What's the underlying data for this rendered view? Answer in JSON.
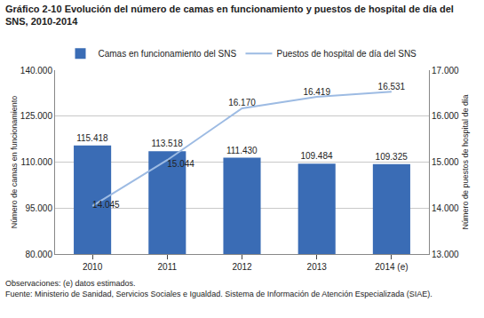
{
  "chart_data": {
    "type": "bar",
    "title": "Gráfico 2-10 Evolución del número de camas en funcionamiento y puestos de hospital de día del SNS, 2010-2014",
    "categories": [
      "2010",
      "2011",
      "2012",
      "2013",
      "2014 (e)"
    ],
    "series": [
      {
        "name": "Camas en funcionamiento del SNS",
        "type": "bar",
        "color": "#3a6cb5",
        "values": [
          115418,
          113518,
          111430,
          109484,
          109325
        ],
        "value_labels": [
          "115.418",
          "113.518",
          "111.430",
          "109.484",
          "109.325"
        ]
      },
      {
        "name": "Puestos de hospital de día del SNS",
        "type": "line",
        "axis": "y2",
        "color": "#9dbbe3",
        "values": [
          14045,
          15044,
          16170,
          16419,
          16531
        ],
        "value_labels": [
          "14.045",
          "15.044",
          "16.170",
          "16.419",
          "16.531"
        ]
      }
    ],
    "ylabel": "Número de camas en funcionamiento",
    "y2label": "Número de puestos de hospital de día",
    "ylim": [
      80000,
      140000
    ],
    "yticks": [
      {
        "value": 80000,
        "label": "80.000"
      },
      {
        "value": 95000,
        "label": "95.000"
      },
      {
        "value": 110000,
        "label": "110.000"
      },
      {
        "value": 125000,
        "label": "125.000"
      },
      {
        "value": 140000,
        "label": "140.000"
      }
    ],
    "y2lim": [
      13000,
      17000
    ],
    "y2ticks": [
      {
        "value": 13000,
        "label": "13.000"
      },
      {
        "value": 14000,
        "label": "14.000"
      },
      {
        "value": 15000,
        "label": "15.000"
      },
      {
        "value": 16000,
        "label": "16.000"
      },
      {
        "value": 17000,
        "label": "17.000"
      }
    ],
    "grid": true,
    "legend": "top",
    "data_labels": true,
    "annotations": [
      "Observaciones: (e) datos estimados.",
      "Fuente: Ministerio de Sanidad, Servicios Sociales e Igualdad. Sistema de Información de Atención Especializada (SIAE)."
    ]
  }
}
